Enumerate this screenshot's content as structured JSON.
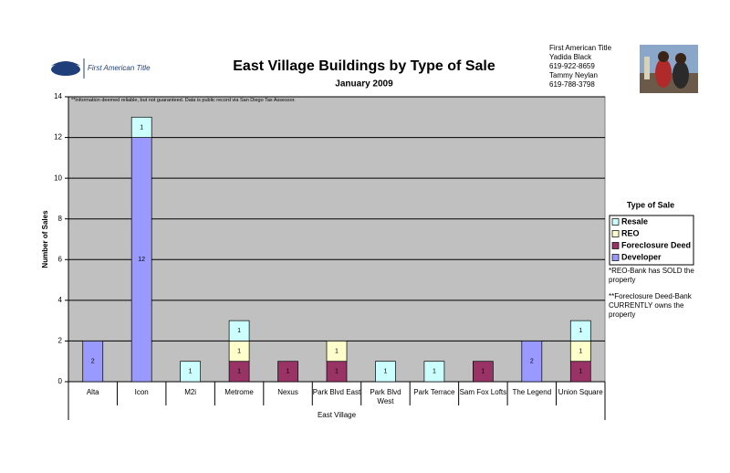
{
  "header": {
    "logo_text": "First American Title",
    "contact": [
      "First American Title",
      "Yadida Black",
      "619-922-8659",
      "Tammy Neylan",
      "619-788-3798"
    ]
  },
  "disclaimer": "**Information deemed reliable, but not guaranteed.  Data is public record via San Diego Tax Assessor.",
  "notes": [
    "*REO-Bank has SOLD the property",
    "**Foreclosure Deed-Bank CURRENTLY owns the property"
  ],
  "chart_data": {
    "type": "bar",
    "stacked": true,
    "title": "East Village Buildings by Type of Sale",
    "subtitle": "January 2009",
    "x_label": "East Village",
    "y_label": "Number of Sales",
    "legend_title": "Type of Sale",
    "legend": "right",
    "grid": true,
    "categories": [
      "Alta",
      "Icon",
      "M2i",
      "Metrome",
      "Nexus",
      "Park Blvd East",
      "Park Blvd West",
      "Park Terrace",
      "Sam Fox Lofts",
      "The Legend",
      "Union Square"
    ],
    "series": [
      {
        "name": "Developer",
        "color": "#9999ff",
        "values": [
          2,
          12,
          null,
          null,
          null,
          null,
          null,
          null,
          null,
          2,
          null
        ]
      },
      {
        "name": "Foreclosure Deed",
        "color": "#993366",
        "values": [
          null,
          null,
          null,
          1,
          1,
          1,
          null,
          null,
          1,
          null,
          1
        ]
      },
      {
        "name": "REO",
        "color": "#ffffcc",
        "values": [
          null,
          null,
          null,
          1,
          null,
          1,
          null,
          null,
          null,
          null,
          1
        ]
      },
      {
        "name": "Resale",
        "color": "#ccffff",
        "values": [
          null,
          1,
          1,
          1,
          null,
          null,
          1,
          1,
          null,
          null,
          1
        ]
      }
    ],
    "ylim": [
      0,
      14
    ],
    "yticks": [
      0,
      2,
      4,
      6,
      8,
      10,
      12,
      14
    ]
  }
}
